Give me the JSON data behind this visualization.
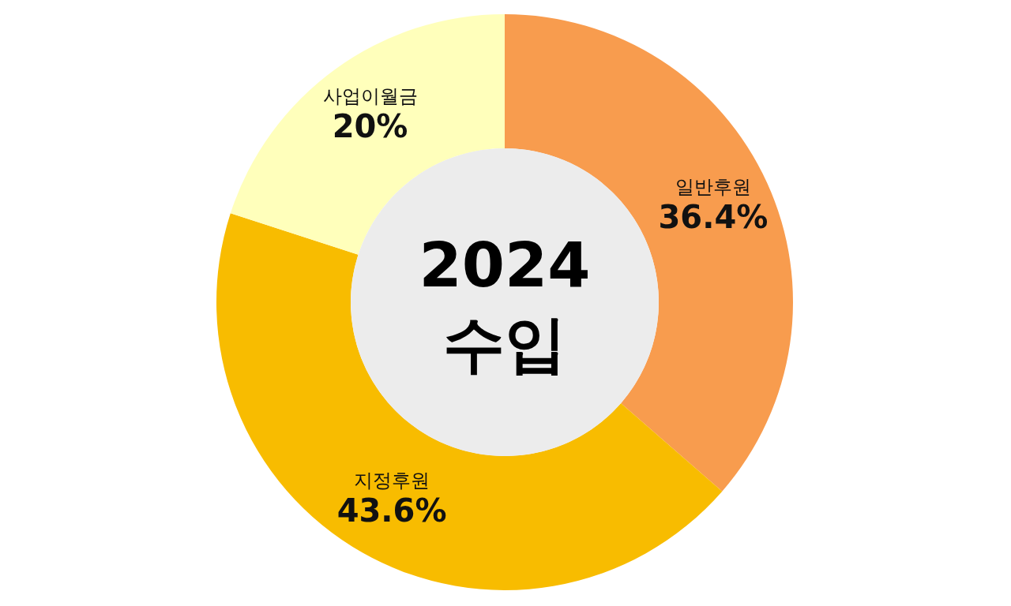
{
  "chart_data": {
    "type": "donut",
    "title": "2024",
    "subtitle": "수입",
    "categories": [
      "일반후원",
      "지정후원",
      "사업이월금"
    ],
    "values": [
      36.4,
      43.6,
      20
    ],
    "value_labels": [
      "36.4%",
      "43.6%",
      "20%"
    ],
    "colors": [
      "#f89c4e",
      "#f8bc00",
      "#ffffbb"
    ]
  }
}
